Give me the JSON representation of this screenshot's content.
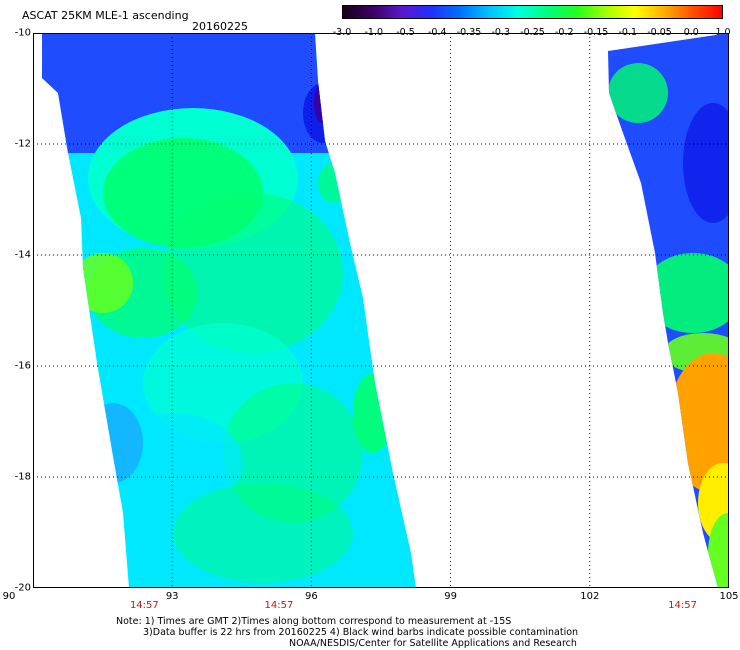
{
  "header": {
    "title": "ASCAT 25KM MLE-1 ascending",
    "date": "20160225"
  },
  "colorbar": {
    "tick_labels": [
      "-3.0",
      "-1.0",
      "-0.5",
      "-0.4",
      "-0.35",
      "-0.3",
      "-0.25",
      "-0.2",
      "-0.15",
      "-0.1",
      "-0.05",
      "0.0",
      "1.0"
    ],
    "colors": [
      "#1a001a",
      "#3c0060",
      "#5a18c8",
      "#2030ff",
      "#0070ff",
      "#00c0ff",
      "#00ffe0",
      "#00ff80",
      "#20ff20",
      "#a0ff00",
      "#ffff00",
      "#ffb000",
      "#ff5000",
      "#ff0000"
    ]
  },
  "axes": {
    "x_labels": [
      "90",
      "93",
      "96",
      "99",
      "102",
      "105"
    ],
    "x_values": [
      90,
      93,
      96,
      99,
      102,
      105
    ],
    "y_labels": [
      "-10",
      "-12",
      "-14",
      "-16",
      "-18",
      "-20"
    ],
    "y_values": [
      -10,
      -12,
      -14,
      -16,
      -18,
      -20
    ],
    "xlim": [
      90,
      105
    ],
    "ylim": [
      -20,
      -10
    ],
    "time_labels": [
      "14:57",
      "14:57",
      "14:57"
    ],
    "time_positions": [
      92.4,
      95.3,
      104.0
    ]
  },
  "map_colors": {
    "dark_blue": "#0a14e6",
    "blue": "#1f4cff",
    "mid_blue": "#2a7cff",
    "cyan": "#00e8ff",
    "aqua": "#00ffd2",
    "green": "#00ff70",
    "lime": "#64ff20",
    "yellow": "#ffee00",
    "orange": "#ffa200",
    "purple": "#3a00a0"
  },
  "notes": {
    "line1": "Note: 1) Times are GMT 2)Times along bottom correspond to measurement at -15S",
    "line2": "3)Data buffer is 22 hrs from 20160225 4) Black wind barbs indicate possible contamination",
    "line3": "NOAA/NESDIS/Center for Satellite Applications and Research"
  }
}
